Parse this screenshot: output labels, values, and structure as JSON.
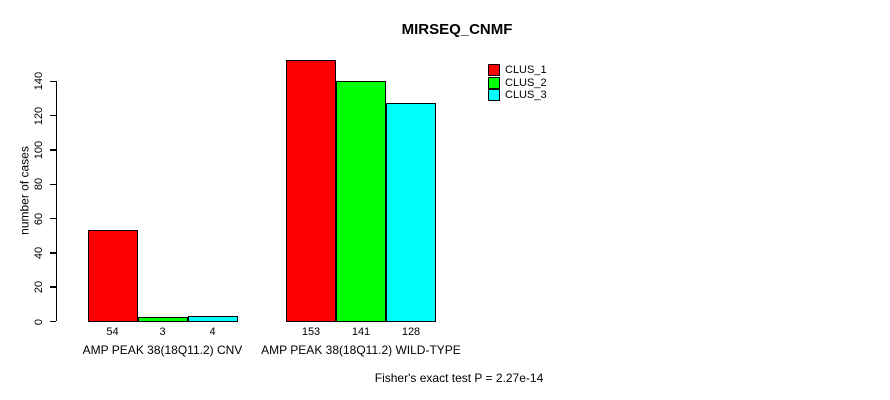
{
  "chart_data": {
    "type": "bar",
    "title": "MIRSEQ_CNMF",
    "ylabel": "number of cases",
    "xlabel": "",
    "ylim": [
      0,
      140
    ],
    "yticks": [
      0,
      20,
      40,
      60,
      80,
      100,
      120,
      140
    ],
    "categories": [
      "AMP PEAK 38(18Q11.2) CNV",
      "AMP PEAK 38(18Q11.2) WILD-TYPE"
    ],
    "series": [
      {
        "name": "CLUS_1",
        "color": "#ff0000",
        "values": [
          54,
          153
        ]
      },
      {
        "name": "CLUS_2",
        "color": "#00ff00",
        "values": [
          3,
          141
        ]
      },
      {
        "name": "CLUS_3",
        "color": "#00ffff",
        "values": [
          4,
          128
        ]
      }
    ],
    "bar_value_labels_shown": true,
    "legend_position": "top-right",
    "grid": false,
    "annotation": "Fisher's exact test P = 2.27e-14",
    "colors": {
      "background": "#ffffff",
      "axis": "#000000",
      "text": "#000000"
    }
  }
}
